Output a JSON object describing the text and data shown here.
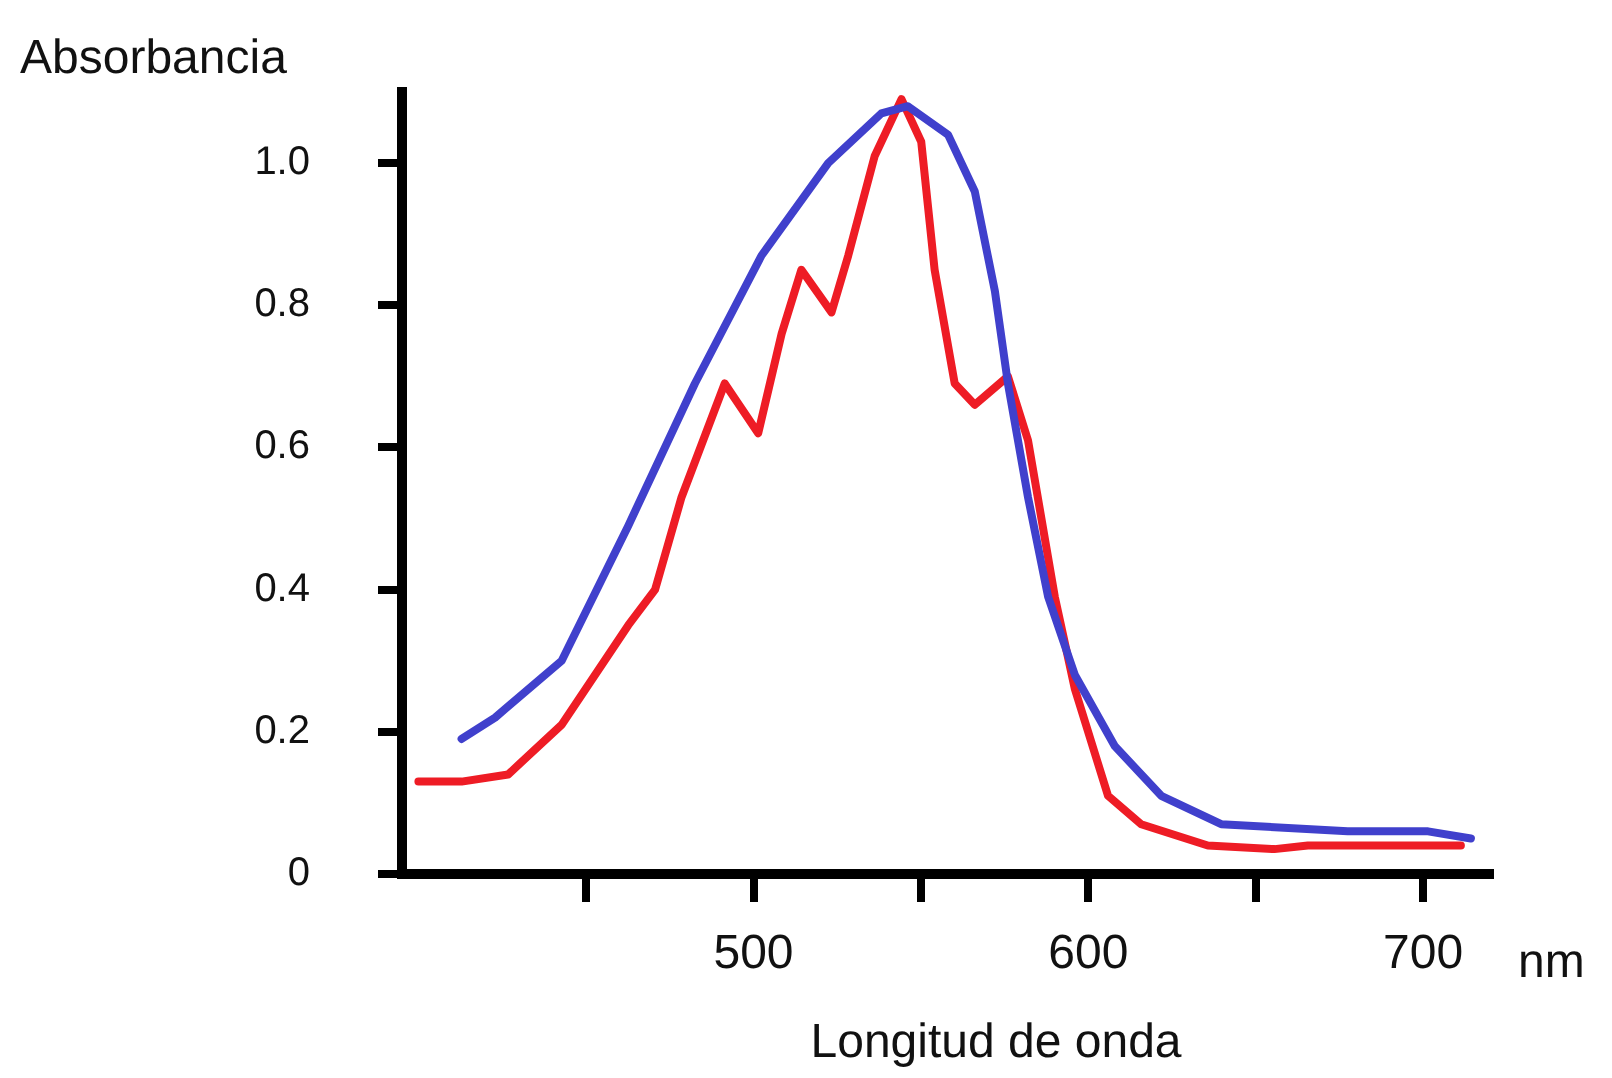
{
  "chart_data": {
    "type": "line",
    "xlabel": "Longitud de onda",
    "ylabel": "Absorbancia",
    "annotations": [
      "nm"
    ],
    "xlim": [
      395,
      720
    ],
    "ylim": [
      0,
      1.1
    ],
    "xticks": [
      {
        "value": 450,
        "label": null
      },
      500,
      {
        "value": 550,
        "label": null
      },
      600,
      {
        "value": 650,
        "label": null
      },
      700
    ],
    "yticks": [
      0,
      0.2,
      0.4,
      0.6,
      0.8,
      {
        "value": 1,
        "label": "1.0"
      }
    ],
    "grid": false,
    "legend": false,
    "marker": "none",
    "line_style": "solid",
    "series": [
      {
        "color": "#4040cc",
        "x": [
          412.8,
          422.8,
          442.7,
          462.6,
          482.5,
          502.4,
          522.3,
          538.2,
          546.1,
          558.1,
          566.1,
          572.1,
          576,
          582,
          588,
          596,
          607.9,
          621.8,
          639.7,
          677.5,
          701.5,
          714.3
        ],
        "values": [
          0.19,
          0.22,
          0.3,
          0.49,
          0.69,
          0.87,
          1.0,
          1.07,
          1.08,
          1.04,
          0.96,
          0.82,
          0.69,
          0.53,
          0.39,
          0.28,
          0.18,
          0.11,
          0.07,
          0.06,
          0.06,
          0.05
        ]
      },
      {
        "color": "#ee1c25",
        "x": [
          399.9,
          412.8,
          426.7,
          442.7,
          462.6,
          470.6,
          478.5,
          491.4,
          501.4,
          508.4,
          514.3,
          523.3,
          528.3,
          536.2,
          544.2,
          550.1,
          554.1,
          560.1,
          566.1,
          576,
          582,
          590,
          596,
          605.9,
          615.8,
          635.7,
          655.6,
          665.6,
          711.3
        ],
        "values": [
          0.13,
          0.13,
          0.14,
          0.21,
          0.35,
          0.4,
          0.53,
          0.69,
          0.62,
          0.76,
          0.85,
          0.79,
          0.87,
          1.01,
          1.09,
          1.03,
          0.85,
          0.69,
          0.66,
          0.7,
          0.61,
          0.39,
          0.26,
          0.11,
          0.07,
          0.04,
          0.035,
          0.04,
          0.04
        ]
      }
    ]
  }
}
